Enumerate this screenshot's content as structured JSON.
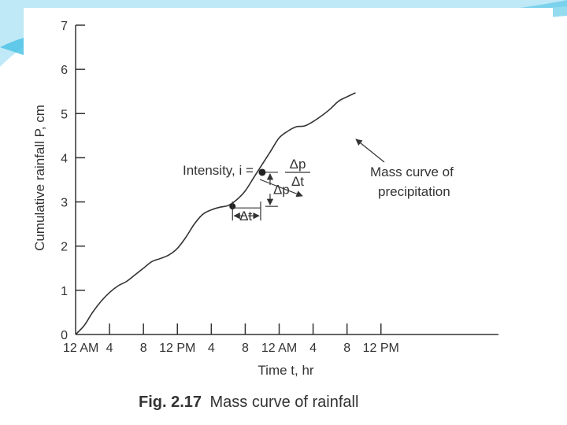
{
  "theme": {
    "accent": "#4fc3e6",
    "accent_light": "#bfe9f6",
    "ink": "#333333"
  },
  "chart_data": {
    "type": "line",
    "title": "Mass curve of rainfall",
    "caption_number": "Fig. 2.17",
    "xlabel": "Time t, hr",
    "ylabel": "Cumulative rainfall P, cm",
    "xlim": [
      0,
      96
    ],
    "ylim": [
      0,
      7
    ],
    "x_ticks": [
      {
        "x": 0,
        "label": "12 AM"
      },
      {
        "x": 8,
        "label": "4"
      },
      {
        "x": 16,
        "label": "8"
      },
      {
        "x": 24,
        "label": "12 PM"
      },
      {
        "x": 32,
        "label": "4"
      },
      {
        "x": 40,
        "label": "8"
      },
      {
        "x": 48,
        "label": "12 AM"
      },
      {
        "x": 56,
        "label": "4"
      },
      {
        "x": 64,
        "label": "8"
      },
      {
        "x": 72,
        "label": "12 PM"
      }
    ],
    "y_ticks": [
      0,
      1,
      2,
      3,
      4,
      5,
      6,
      7
    ],
    "series": [
      {
        "name": "Mass curve of precipitation",
        "x": [
          0,
          2,
          4,
          6,
          8,
          10,
          12,
          14,
          16,
          18,
          20,
          22,
          24,
          26,
          28,
          30,
          32,
          34,
          36,
          38,
          40,
          42,
          44,
          46,
          48,
          50,
          52,
          54,
          56,
          58,
          60,
          62,
          64,
          66
        ],
        "y": [
          0.0,
          0.2,
          0.5,
          0.75,
          0.95,
          1.1,
          1.2,
          1.35,
          1.5,
          1.65,
          1.72,
          1.8,
          1.95,
          2.2,
          2.5,
          2.72,
          2.82,
          2.88,
          2.92,
          3.05,
          3.25,
          3.55,
          3.85,
          4.15,
          4.45,
          4.6,
          4.7,
          4.72,
          4.82,
          4.95,
          5.1,
          5.28,
          5.38,
          5.47
        ]
      }
    ],
    "annotations": {
      "intensity_prefix": "Intensity, i =",
      "frac_numerator": "Δp",
      "frac_denominator": "Δt",
      "delta_t": "Δt",
      "delta_p": "Δp",
      "curve_label_line1": "Mass curve of",
      "curve_label_line2": "precipitation",
      "point_a": {
        "x": 37,
        "y": 2.9
      },
      "point_b": {
        "x": 44,
        "y": 3.67
      }
    }
  }
}
